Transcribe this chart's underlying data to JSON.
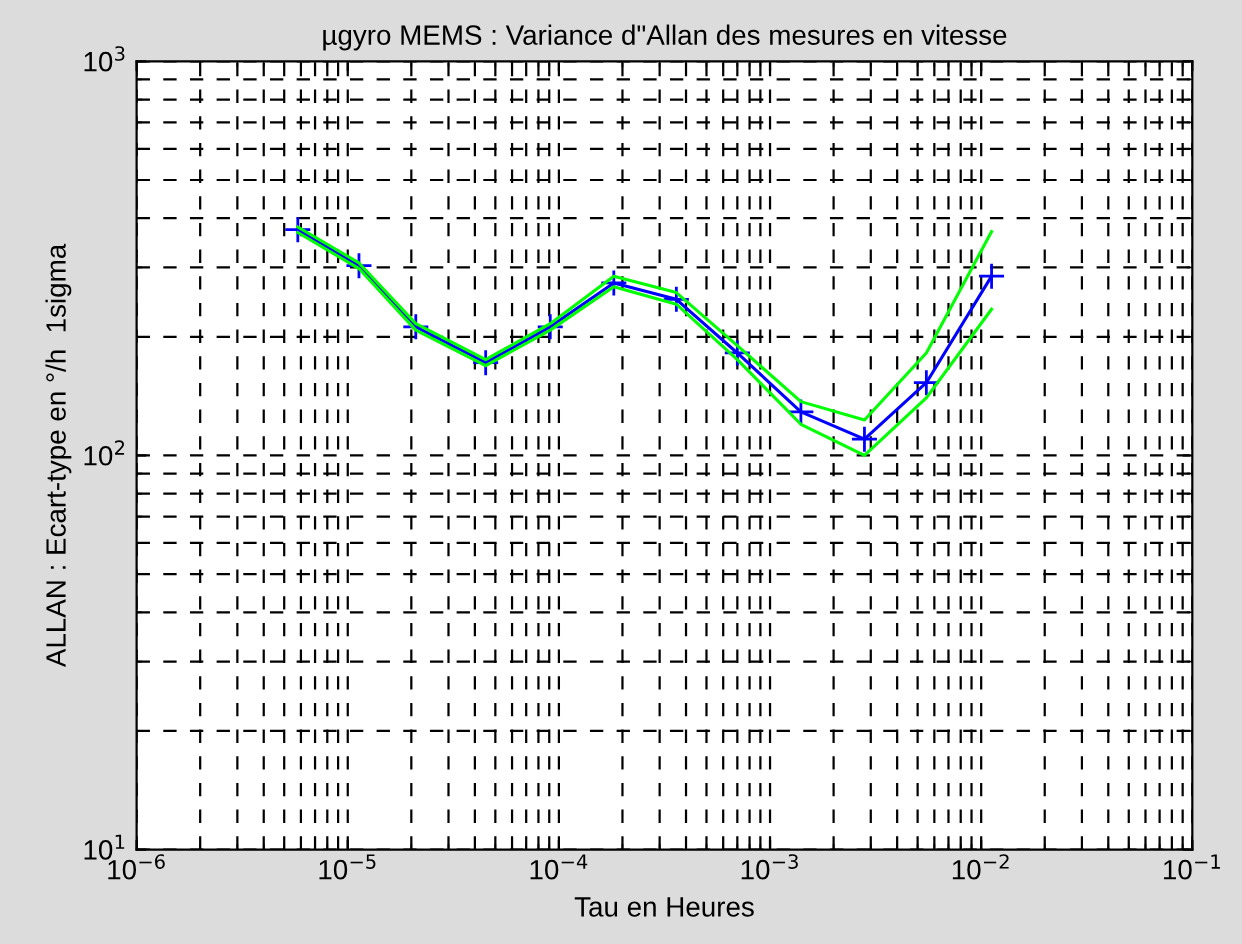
{
  "chart_data": {
    "type": "line",
    "title": "µgyro MEMS : Variance d\"Allan des mesures en vitesse",
    "xlabel": "Tau en Heures",
    "ylabel": "ALLAN : Ecart-type en °/h  1sigma",
    "x": [
      5.8e-06,
      1.13e-05,
      2.1e-05,
      4.5e-05,
      9.1e-05,
      0.000182,
      0.00036,
      0.0007,
      0.0014,
      0.0028,
      0.0055,
      0.0112
    ],
    "series": [
      {
        "color": "#0000ff",
        "marker": "cross",
        "values": [
          374,
          303,
          212,
          172,
          212,
          274,
          249,
          182,
          129,
          110,
          153,
          285
        ]
      },
      {
        "color": "#00ff00",
        "marker": "none",
        "values": [
          380,
          308,
          216,
          175,
          216,
          285,
          259,
          190,
          137,
          123,
          182,
          370
        ]
      },
      {
        "color": "#00ff00",
        "marker": "none",
        "values": [
          368,
          298,
          208,
          169,
          208,
          268,
          242,
          175,
          120,
          100,
          140,
          235
        ]
      }
    ],
    "log": "xy",
    "grid": true,
    "line_style": "solid",
    "xlim": [
      1e-06,
      0.1
    ],
    "ylim": [
      10,
      1000
    ],
    "xticks": [
      {
        "value": 1e-06,
        "label": "10$^{−6}$"
      },
      {
        "value": 1e-05,
        "label": "10$^{−5}$"
      },
      {
        "value": 0.0001,
        "label": "10$^{−4}$"
      },
      {
        "value": 0.001,
        "label": "10$^{−3}$"
      },
      {
        "value": 0.01,
        "label": "10$^{−2}$"
      },
      {
        "value": 0.1,
        "label": "10$^{−1}$"
      }
    ],
    "yticks": [
      {
        "value": 10,
        "label": "10$^{1}$"
      },
      {
        "value": 100,
        "label": "10$^{2}$"
      },
      {
        "value": 1000,
        "label": "10$^{3}$"
      }
    ]
  }
}
